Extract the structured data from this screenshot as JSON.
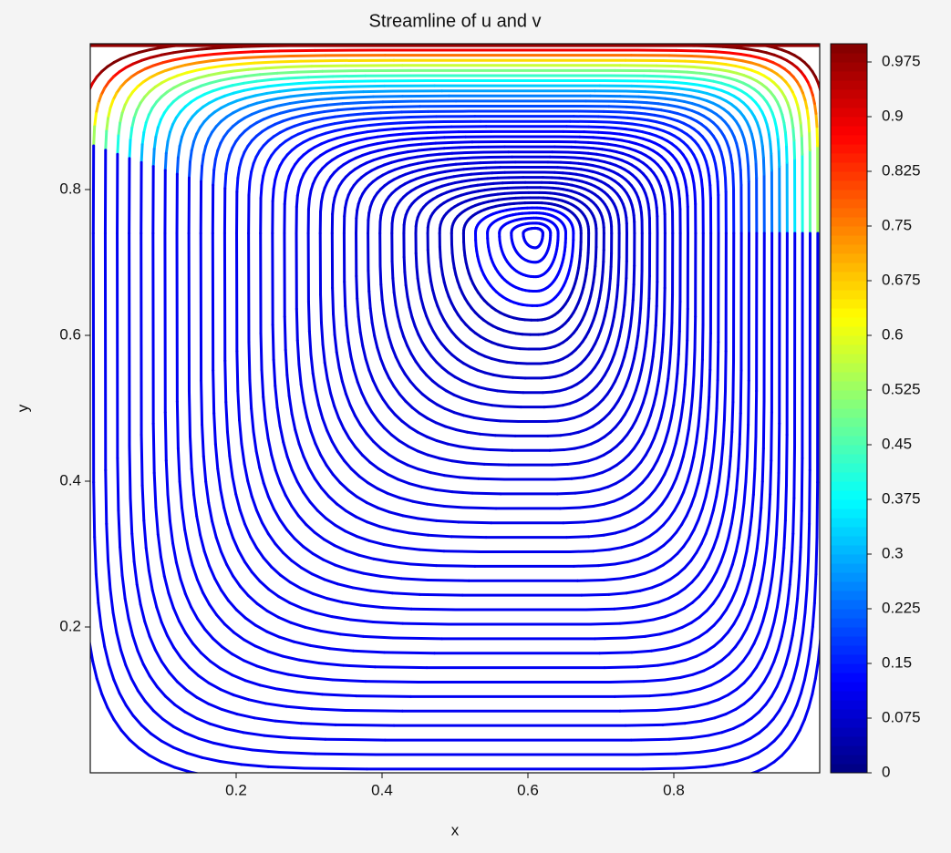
{
  "chart_data": {
    "type": "streamplot",
    "title": "Streamline of u and v",
    "x_label": "x",
    "y_label": "y",
    "xlim": [
      0,
      1
    ],
    "ylim": [
      0,
      1
    ],
    "xticks": [
      0.2,
      0.4,
      0.6,
      0.8
    ],
    "yticks": [
      0.2,
      0.4,
      0.6,
      0.8
    ],
    "colormap": "jet",
    "colorbar_lim": [
      0,
      1.0
    ],
    "colorbar_ticks": [
      0,
      0.075,
      0.15,
      0.225,
      0.3,
      0.375,
      0.45,
      0.525,
      0.6,
      0.675,
      0.75,
      0.825,
      0.9,
      0.975
    ]
  }
}
